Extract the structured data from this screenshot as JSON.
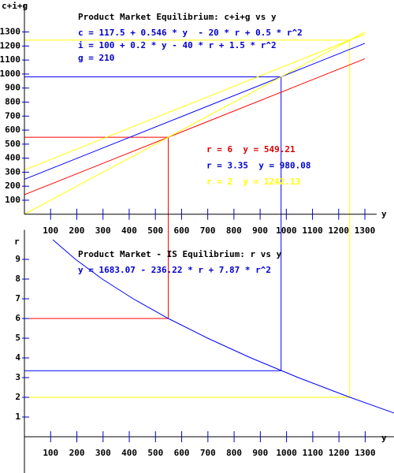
{
  "chart_data": [
    {
      "type": "line",
      "title": "Product Market Equilibrium: c+i+g vs y",
      "equations": [
        "c = 117.5 + 0.546 * y  - 20 * r + 0.5 * r^2",
        "i = 100 + 0.2 * y - 40 * r + 1.5 * r^2",
        "g = 210"
      ],
      "equation_color": "#0000cc",
      "x_label": "y",
      "y_label": "c+i+g",
      "x": [
        0,
        1300
      ],
      "series": [
        {
          "color": "#ff0000",
          "values": [
            139.5,
            1109
          ]
        },
        {
          "color": "#0000ff",
          "values": [
            249,
            1219
          ]
        },
        {
          "color": "#ffff00",
          "values": [
            316,
            1285
          ]
        },
        {
          "color": "#ffff00",
          "values": [
            0,
            1300
          ]
        }
      ],
      "annotations": [
        {
          "text": "r = 6  y = 549.21",
          "color": "#dd0000"
        },
        {
          "text": "r = 3.35  y = 980.08",
          "color": "#0000cc"
        },
        {
          "text": "r = 2  y = 1242.13",
          "color": "#ffff00"
        }
      ],
      "equilibria": [
        {
          "r": 6,
          "y": 549.21,
          "color": "#ff0000"
        },
        {
          "r": 3.35,
          "y": 980.08,
          "color": "#0000ff"
        },
        {
          "r": 2,
          "y": 1242.13,
          "color": "#ffff00"
        }
      ],
      "xlim": [
        0,
        1345
      ],
      "ylim": [
        0,
        1500
      ],
      "xticks": [
        100,
        200,
        300,
        400,
        500,
        600,
        700,
        800,
        900,
        1000,
        1100,
        1200,
        1300
      ],
      "yticks": [
        100,
        200,
        300,
        400,
        500,
        600,
        700,
        800,
        900,
        1000,
        1100,
        1200,
        1300
      ]
    },
    {
      "type": "line",
      "title": "Product Market - IS Equilibrium: r vs y",
      "equations": [
        "y = 1683.07 - 236.22 * r + 7.87 * r^2"
      ],
      "equation_color": "#0000cc",
      "x_label": "y",
      "y_label": "r",
      "x": [
        108,
        195,
        297,
        415,
        549,
        699,
        864,
        1045,
        1242,
        1411
      ],
      "series": [
        {
          "color": "#0000ff",
          "values": [
            10,
            9,
            8,
            7,
            6,
            5,
            4,
            3,
            2,
            1.2
          ]
        }
      ],
      "xlim": [
        0,
        1410
      ],
      "ylim": [
        0,
        10.5
      ],
      "xticks": [
        100,
        200,
        300,
        400,
        500,
        600,
        700,
        800,
        900,
        1000,
        1100,
        1200,
        1300
      ],
      "yticks": [
        1,
        2,
        3,
        4,
        5,
        6,
        7,
        8,
        9
      ]
    }
  ]
}
